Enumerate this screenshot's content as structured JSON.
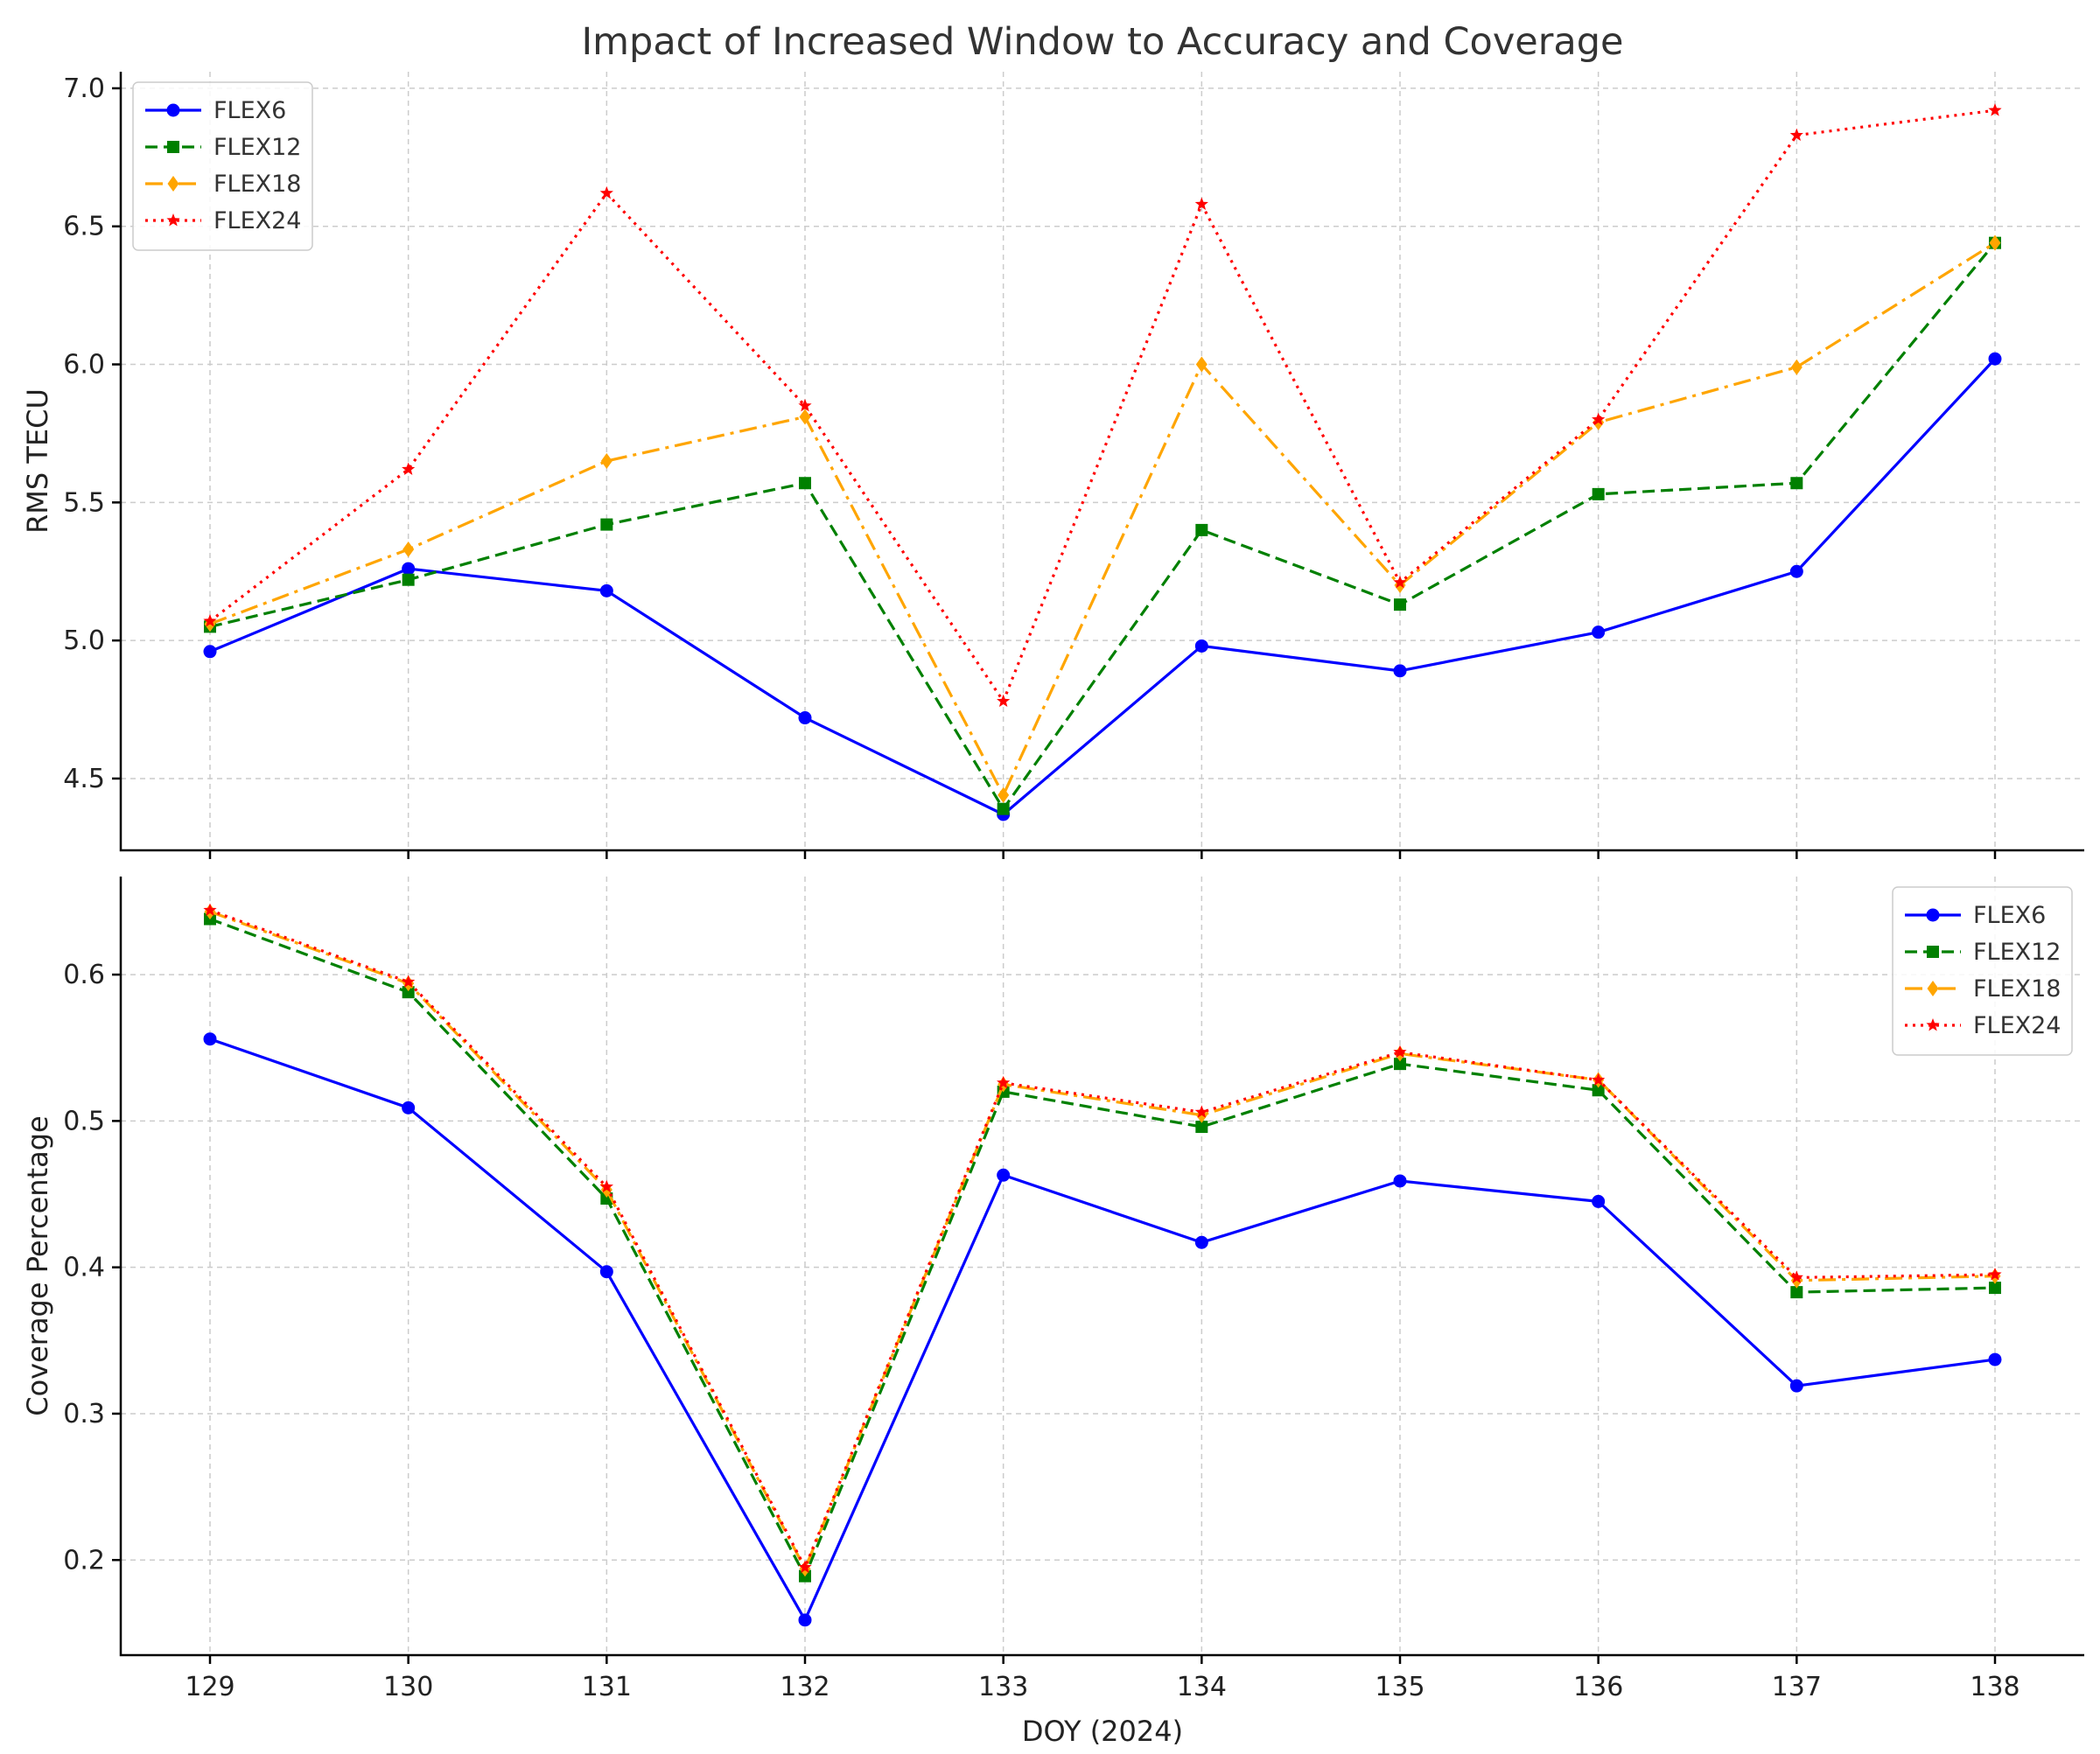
{
  "title": "Impact of Increased Window to Accuracy and Coverage",
  "chart_data": [
    {
      "type": "line",
      "ylabel": "RMS TECU",
      "xlabel": "",
      "x": [
        129,
        130,
        131,
        132,
        133,
        134,
        135,
        136,
        137,
        138
      ],
      "xlim": [
        128.55,
        138.45
      ],
      "ylim": [
        4.24,
        7.06
      ],
      "yticks": [
        "4.5",
        "5.0",
        "5.5",
        "6.0",
        "6.5",
        "7.0"
      ],
      "grid": true,
      "legend_position": "upper-left",
      "series": [
        {
          "name": "FLEX6",
          "color": "#0000ff",
          "marker": "circle",
          "dash": "solid",
          "values": [
            4.96,
            5.26,
            5.18,
            4.72,
            4.37,
            4.98,
            4.89,
            5.03,
            5.25,
            6.02
          ]
        },
        {
          "name": "FLEX12",
          "color": "#008000",
          "marker": "square",
          "dash": "dashed",
          "values": [
            5.05,
            5.22,
            5.42,
            5.57,
            4.39,
            5.4,
            5.13,
            5.53,
            5.57,
            6.44
          ]
        },
        {
          "name": "FLEX18",
          "color": "#ffa500",
          "marker": "diamond",
          "dash": "dashdot",
          "values": [
            5.06,
            5.33,
            5.65,
            5.81,
            4.44,
            6.0,
            5.2,
            5.79,
            5.99,
            6.44
          ]
        },
        {
          "name": "FLEX24",
          "color": "#ff0000",
          "marker": "star",
          "dash": "dotted",
          "values": [
            5.07,
            5.62,
            6.62,
            5.85,
            4.78,
            6.58,
            5.21,
            5.8,
            6.83,
            6.92
          ]
        }
      ]
    },
    {
      "type": "line",
      "ylabel": "Coverage Percentage",
      "xlabel": "DOY (2024)",
      "x": [
        129,
        130,
        131,
        132,
        133,
        134,
        135,
        136,
        137,
        138
      ],
      "xticks": [
        "129",
        "130",
        "131",
        "132",
        "133",
        "134",
        "135",
        "136",
        "137",
        "138"
      ],
      "xlim": [
        128.55,
        138.45
      ],
      "ylim": [
        0.135,
        0.667
      ],
      "yticks": [
        "0.2",
        "0.3",
        "0.4",
        "0.5",
        "0.6"
      ],
      "grid": true,
      "legend_position": "upper-right",
      "series": [
        {
          "name": "FLEX6",
          "color": "#0000ff",
          "marker": "circle",
          "dash": "solid",
          "values": [
            0.556,
            0.509,
            0.397,
            0.159,
            0.463,
            0.417,
            0.459,
            0.445,
            0.319,
            0.337
          ]
        },
        {
          "name": "FLEX12",
          "color": "#008000",
          "marker": "square",
          "dash": "dashed",
          "values": [
            0.638,
            0.588,
            0.447,
            0.189,
            0.52,
            0.496,
            0.539,
            0.521,
            0.383,
            0.386
          ]
        },
        {
          "name": "FLEX18",
          "color": "#ffa500",
          "marker": "diamond",
          "dash": "dashdot",
          "values": [
            0.643,
            0.594,
            0.453,
            0.194,
            0.525,
            0.504,
            0.546,
            0.528,
            0.391,
            0.394
          ]
        },
        {
          "name": "FLEX24",
          "color": "#ff0000",
          "marker": "star",
          "dash": "dotted",
          "values": [
            0.644,
            0.595,
            0.455,
            0.195,
            0.526,
            0.506,
            0.547,
            0.528,
            0.393,
            0.395
          ]
        }
      ]
    }
  ]
}
